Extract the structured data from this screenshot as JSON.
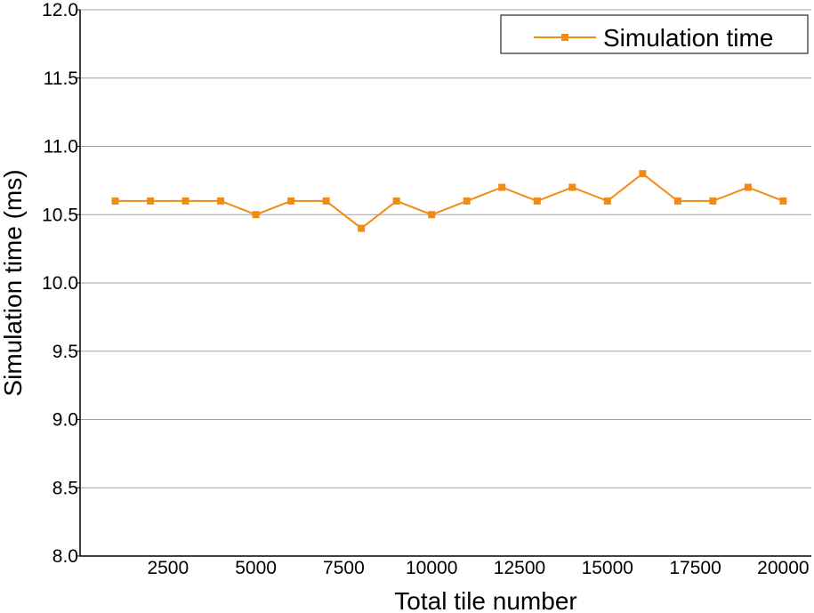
{
  "chart_data": {
    "type": "line",
    "title": "",
    "xlabel": "Total tile number",
    "ylabel": "Simulation time (ms)",
    "xlim": [
      0,
      20800
    ],
    "ylim": [
      8.0,
      12.0
    ],
    "x_ticks": [
      2500,
      5000,
      7500,
      10000,
      12500,
      15000,
      17500,
      20000
    ],
    "x_tick_labels": [
      "2500",
      "5000",
      "7500",
      "10000",
      "12500",
      "15000",
      "17500",
      "20000"
    ],
    "y_ticks": [
      8.0,
      8.5,
      9.0,
      9.5,
      10.0,
      10.5,
      11.0,
      11.5,
      12.0
    ],
    "y_tick_labels": [
      "8.0",
      "8.5",
      "9.0",
      "9.5",
      "10.0",
      "10.5",
      "11.0",
      "11.5",
      "12.0"
    ],
    "grid": "horizontal",
    "legend_position": "top-right",
    "series": [
      {
        "name": "Simulation time",
        "color": "#f08c14",
        "marker": "square",
        "x": [
          1000,
          2000,
          3000,
          4000,
          5000,
          6000,
          7000,
          8000,
          9000,
          10000,
          11000,
          12000,
          13000,
          14000,
          15000,
          16000,
          17000,
          18000,
          19000,
          20000
        ],
        "y": [
          10.6,
          10.6,
          10.6,
          10.6,
          10.5,
          10.6,
          10.6,
          10.4,
          10.6,
          10.5,
          10.6,
          10.7,
          10.6,
          10.7,
          10.6,
          10.8,
          10.6,
          10.6,
          10.7,
          10.6
        ]
      }
    ]
  }
}
